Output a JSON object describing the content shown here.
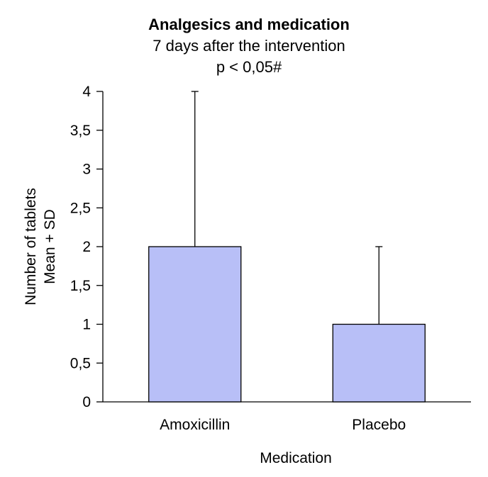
{
  "chart_data": {
    "type": "bar",
    "title": "Analgesics and medication",
    "subtitle_lines": [
      "7 days after the intervention",
      "p < 0,05#"
    ],
    "xlabel": "Medication",
    "ylabel_lines": [
      "Number of tablets",
      "Mean + SD"
    ],
    "categories": [
      "Amoxicillin",
      "Placebo"
    ],
    "values": [
      2,
      1
    ],
    "error_upper": [
      2,
      1
    ],
    "ylim": [
      0,
      4
    ],
    "yticks": [
      0,
      0.5,
      1,
      1.5,
      2,
      2.5,
      3,
      3.5,
      4
    ],
    "ytick_labels": [
      "0",
      "0,5",
      "1",
      "1,5",
      "2",
      "2,5",
      "3",
      "3,5",
      "4"
    ],
    "bar_color": "#b8bff7",
    "grid": false
  }
}
